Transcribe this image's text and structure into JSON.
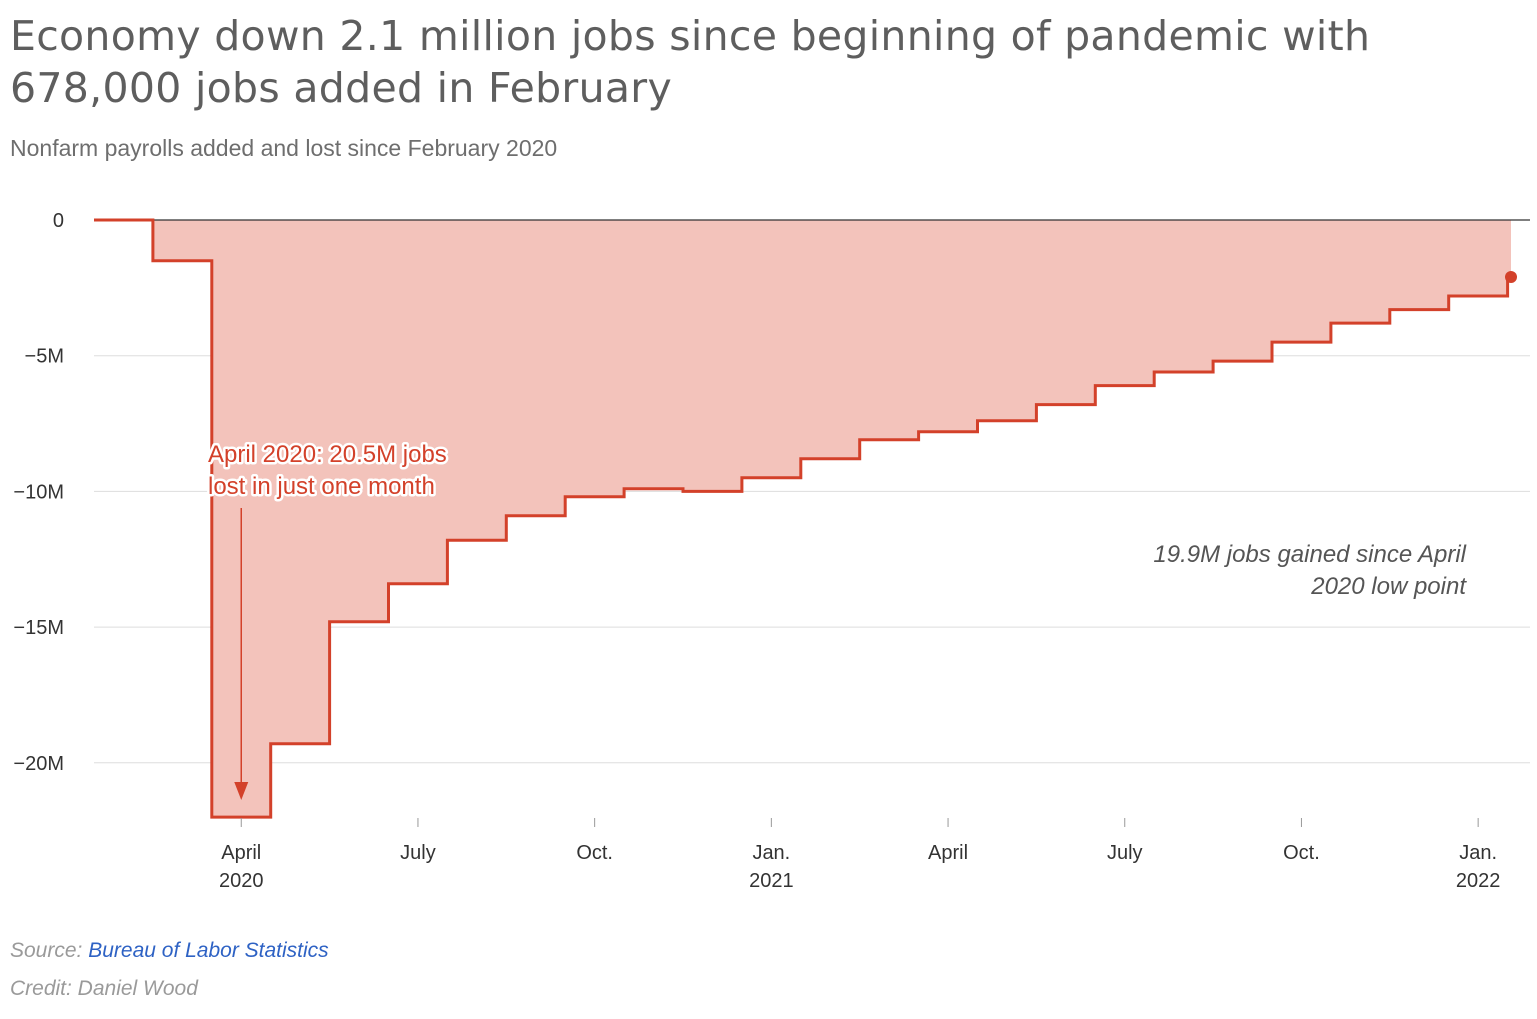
{
  "header": {
    "title": "Economy down 2.1 million jobs since beginning of pandemic with 678,000 jobs added in February",
    "subtitle": "Nonfarm payrolls added and lost since February 2020"
  },
  "footer": {
    "source_prefix": "Source: ",
    "source_name": "Bureau of Labor Statistics",
    "credit": "Credit: Daniel Wood"
  },
  "colors": {
    "line": "#d3412a",
    "fill": "#f3c3bb",
    "grid": "#dddddd",
    "axis": "#333333"
  },
  "chart_data": {
    "type": "area",
    "step": true,
    "x": [
      "2020-02",
      "2020-03",
      "2020-04",
      "2020-05",
      "2020-06",
      "2020-07",
      "2020-08",
      "2020-09",
      "2020-10",
      "2020-11",
      "2020-12",
      "2021-01",
      "2021-02",
      "2021-03",
      "2021-04",
      "2021-05",
      "2021-06",
      "2021-07",
      "2021-08",
      "2021-09",
      "2021-10",
      "2021-11",
      "2021-12",
      "2022-01",
      "2022-02"
    ],
    "values": [
      0,
      -1.5,
      -22.0,
      -19.3,
      -14.8,
      -13.4,
      -11.8,
      -10.9,
      -10.2,
      -9.9,
      -10.0,
      -9.5,
      -8.8,
      -8.1,
      -7.8,
      -7.4,
      -6.8,
      -6.1,
      -5.6,
      -5.2,
      -4.5,
      -3.8,
      -3.3,
      -2.8,
      -2.1
    ],
    "unit": "million jobs",
    "ylim": [
      -22,
      0
    ],
    "yticks": [
      {
        "value": 0,
        "label": "0"
      },
      {
        "value": -5,
        "label": "−5M"
      },
      {
        "value": -10,
        "label": "−10M"
      },
      {
        "value": -15,
        "label": "−15M"
      },
      {
        "value": -20,
        "label": "−20M"
      }
    ],
    "xticks": [
      {
        "month": "2020-04",
        "label": "April",
        "year": "2020"
      },
      {
        "month": "2020-07",
        "label": "July",
        "year": ""
      },
      {
        "month": "2020-10",
        "label": "Oct.",
        "year": ""
      },
      {
        "month": "2021-01",
        "label": "Jan.",
        "year": "2021"
      },
      {
        "month": "2021-04",
        "label": "April",
        "year": ""
      },
      {
        "month": "2021-07",
        "label": "July",
        "year": ""
      },
      {
        "month": "2021-10",
        "label": "Oct.",
        "year": ""
      },
      {
        "month": "2022-01",
        "label": "Jan.",
        "year": "2022"
      }
    ],
    "grid": true,
    "annotations": {
      "low": [
        "April 2020: 20.5M jobs",
        "lost in just one month"
      ],
      "gain": [
        "19.9M jobs gained since April",
        "2020 low point"
      ]
    }
  }
}
